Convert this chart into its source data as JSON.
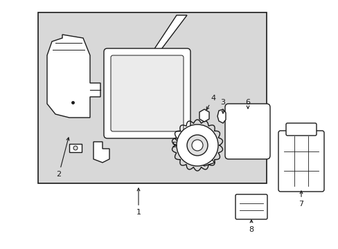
{
  "bg_color": "#ffffff",
  "box_bg": "#d8d8d8",
  "line_color": "#1a1a1a",
  "fig_width": 4.89,
  "fig_height": 3.6,
  "dpi": 100
}
